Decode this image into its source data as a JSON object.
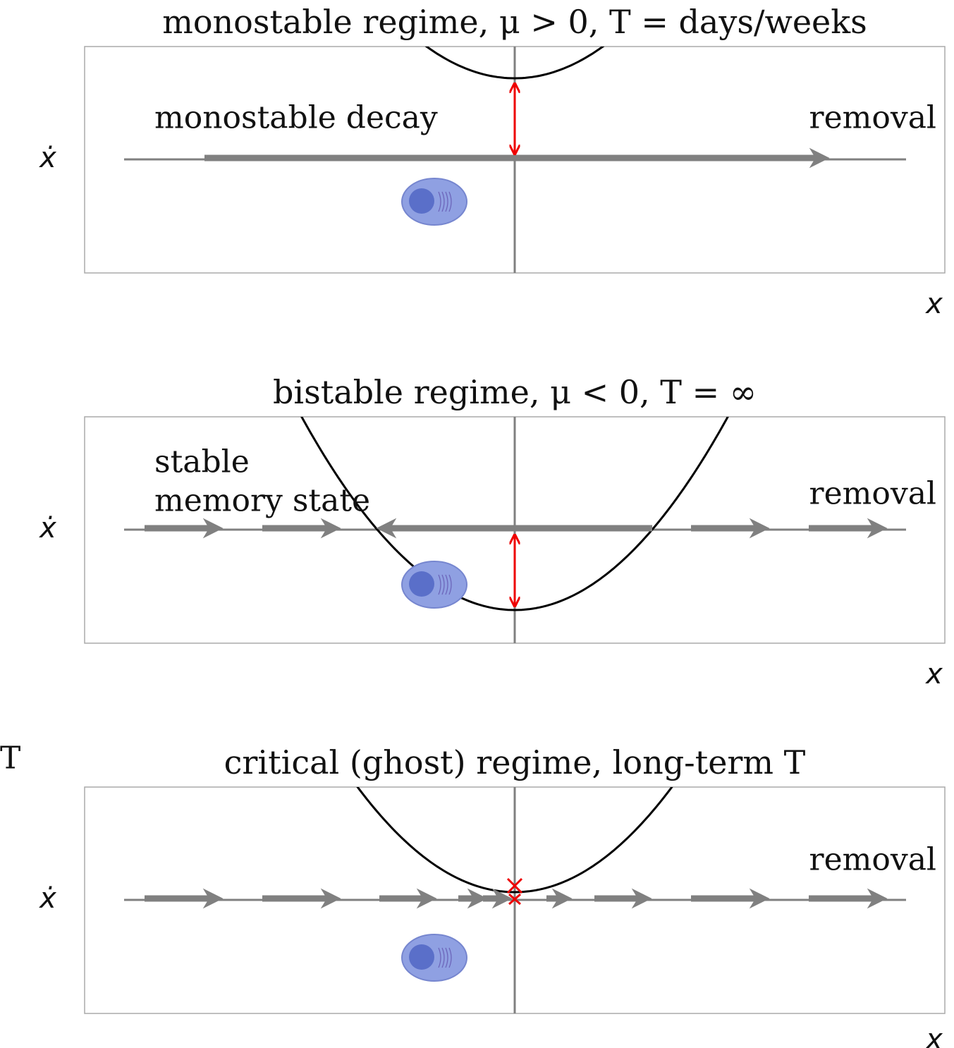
{
  "panels": [
    {
      "title": "monostable regime, μ > 0, T = days/weeks",
      "annotations": [
        "monostable decay",
        "removal"
      ],
      "y_label": "ẋ",
      "x_label": "x"
    },
    {
      "title": "bistable regime, μ < 0, T = ∞",
      "annotations": [
        "stable",
        "memory state",
        "removal"
      ],
      "y_label": "ẋ",
      "x_label": "x"
    },
    {
      "title": "critical (ghost) regime, long-term T",
      "annotations": [
        "removal"
      ],
      "y_label": "ẋ",
      "x_label": "x"
    }
  ],
  "side_label": "T"
}
